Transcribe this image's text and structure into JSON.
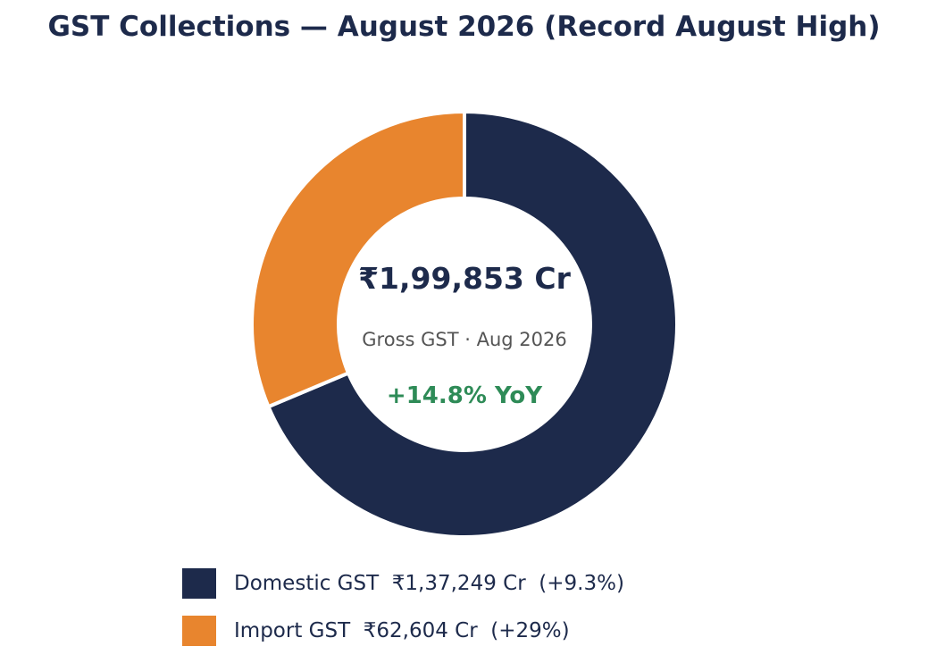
{
  "chart_data": {
    "type": "pie",
    "title": "GST Collections — August 2026 (Record August High)",
    "categories": [
      "Domestic GST",
      "Import GST"
    ],
    "values": [
      137249,
      62604
    ],
    "colors": [
      "#1d2a4b",
      "#e8852e"
    ],
    "center": {
      "value": "₹1,99,853 Cr",
      "label": "Gross GST · Aug 2026",
      "yoy": "+14.8% YoY",
      "yoy_color": "#2e8b57"
    },
    "legend": {
      "placement": "bottom",
      "items": [
        {
          "label": "Domestic GST  ₹1,37,249 Cr  (+9.3%)",
          "color": "#1d2a4b"
        },
        {
          "label": "Import GST  ₹62,604 Cr  (+29%)",
          "color": "#e8852e"
        }
      ]
    }
  }
}
